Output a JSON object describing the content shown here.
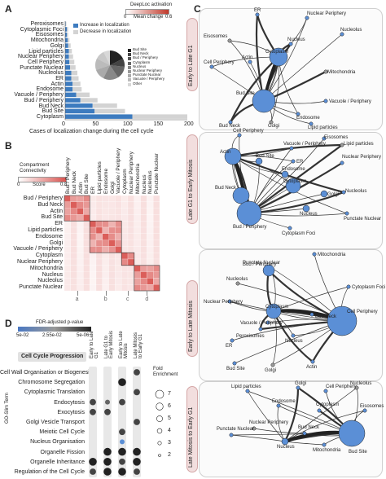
{
  "panels": {
    "a": "A",
    "b": "B",
    "c": "C",
    "d": "D"
  },
  "panelA": {
    "legend_activation": "DeepLoc activation",
    "legend_scale_min": "0",
    "legend_scale_max": "0.6",
    "legend_mean_change": "Mean change",
    "legend_increase": "Increase in localization",
    "legend_decrease": "Decrease in localization",
    "xlabel": "Cases of localization change during the cell cycle",
    "x_ticks": [
      "0",
      "50",
      "100",
      "150",
      "200"
    ],
    "pie_labels": [
      "Bud Site",
      "Bud Neck",
      "Bud / Periphery",
      "Cytoplasm",
      "Nucleus",
      "Nuclear Periphery",
      "Punctate Nuclear",
      "Vacuole / Periphery",
      "Other"
    ]
  },
  "chart_data": {
    "type": "bar",
    "orientation": "horizontal",
    "categories": [
      "Peroxisomes",
      "Cytoplasmic Foci",
      "Eisosomes",
      "Mitochondria",
      "Golgi",
      "Lipid particles",
      "Nuclear Periphery",
      "Cell Periphery",
      "Punctate Nuclear",
      "Nucleolus",
      "ER",
      "Actin",
      "Endosome",
      "Vacuole / Periphery",
      "Bud / Periphery",
      "Bud Neck",
      "Bud Site",
      "Cytoplasm"
    ],
    "series": [
      {
        "name": "Increase in localization",
        "values": [
          1,
          3,
          3,
          4,
          5,
          6,
          6,
          7,
          8,
          10,
          10,
          12,
          12,
          18,
          25,
          45,
          48,
          110
        ]
      },
      {
        "name": "Decrease in localization",
        "values": [
          1,
          2,
          2,
          3,
          4,
          5,
          7,
          8,
          9,
          10,
          12,
          13,
          15,
          22,
          28,
          40,
          50,
          90
        ]
      }
    ],
    "xlim": [
      0,
      200
    ],
    "xlabel": "Cases of localization change during the cell cycle"
  },
  "panelB": {
    "legend_title": "Compartment Connectivity",
    "legend_min": "0",
    "legend_score": "Score",
    "legend_max": "0.8",
    "labels": [
      "Bud / Periphery",
      "Bud Neck",
      "Actin",
      "Bud Site",
      "ER",
      "Lipid particles",
      "Endosome",
      "Golgi",
      "Vacuole / Periphery",
      "Cytoplasm",
      "Nuclear Periphery",
      "Mitochondria",
      "Nucleus",
      "Nucleolus",
      "Punctate Nuclear"
    ],
    "cluster_letters": [
      "a",
      "b",
      "c",
      "d"
    ]
  },
  "panelC": {
    "stages": [
      "Early to Late G1",
      "Late G1 to Early Mitosis",
      "Early to Late Mitosis",
      "Late Mitosis to Early G1"
    ],
    "net1": [
      "ER",
      "Nuclear Periphery",
      "Nucleolus",
      "Eisosomes",
      "Nucleus",
      "Actin",
      "Cell Periphery",
      "Cytoplasm",
      "Mitochondria",
      "Bud Site",
      "Endosome",
      "Vacuole / Periphery",
      "Bud Neck",
      "Golgi",
      "Lipid particles"
    ],
    "net2": [
      "Cell Periphery",
      "Eisosomes",
      "Vacuole / Periphery",
      "Lipid particles",
      "Actin",
      "Bud Site",
      "ER",
      "Nuclear Periphery",
      "Endosome",
      "Cytoplasm",
      "Golgi",
      "Nucleolus",
      "Bud Neck",
      "Nucleus",
      "Punctate Nuclear",
      "Bud / Periphery",
      "Cytoplasm Foci"
    ],
    "net3": [
      "Mitochondria",
      "Punctate Nuclear",
      "Bud / Periphery",
      "Nucleolus",
      "Cytoplasm Foci",
      "Nuclear Periphery",
      "Cytoplasm",
      "Bud Neck",
      "Cell Periphery",
      "Vacuole / Periphery",
      "Peroxisomes",
      "Nucleus",
      "ER",
      "Golgi",
      "Actin",
      "Bud Site"
    ],
    "net4": [
      "Lipid particles",
      "Golgi",
      "Cell Periphery",
      "Nucleolus",
      "Endosome",
      "Cytoplasm",
      "Eisosomes",
      "Punctate Nuclear",
      "Nuclear Periphery",
      "Nucleus",
      "Mitochondria",
      "Bud Neck",
      "Bud Site"
    ]
  },
  "panelD": {
    "legend_title": "FDR-adjusted p-value",
    "legend_vals": [
      "5e-02",
      "2.55e-02",
      "5e-06"
    ],
    "header": "Cell Cycle Progression",
    "columns": [
      "Early to Late G1",
      "Late G1 to Early Mitosis",
      "Early to Late Mitosis",
      "Late Mitosis to Early G1"
    ],
    "ylabel": "GO-Slim Term",
    "terms": [
      "Cell Wall Organisation or Biogenesis",
      "Chromosome Segregation",
      "Cytoplasmic Translation",
      "Endocytosis",
      "Exocytosis",
      "Golgi Vesicle Transport",
      "Meiotic Cell Cycle",
      "Nucleus Organisation",
      "Organelle Fission",
      "Organelle Inheritance",
      "Regulation of the Cell Cycle"
    ],
    "fold_title": "Fold Enrichment",
    "fold_vals": [
      "7",
      "6",
      "5",
      "4",
      "3",
      "2"
    ],
    "dots": [
      [
        0,
        0,
        0,
        3
      ],
      [
        0,
        0,
        4,
        0
      ],
      [
        0,
        0,
        0,
        3
      ],
      [
        3,
        2,
        3,
        0
      ],
      [
        3,
        3,
        0,
        0
      ],
      [
        0,
        0,
        0,
        3
      ],
      [
        0,
        0,
        3,
        0
      ],
      [
        0,
        0,
        2,
        0
      ],
      [
        0,
        4,
        4,
        4
      ],
      [
        4,
        4,
        3,
        4
      ],
      [
        3,
        4,
        4,
        3
      ]
    ]
  },
  "colors": {
    "increase": "#3d7bbf",
    "decrease": "#d3d3d3",
    "node": "#5b8fd6",
    "stage_bg": "#f2dede",
    "heat": "#d9534f"
  }
}
